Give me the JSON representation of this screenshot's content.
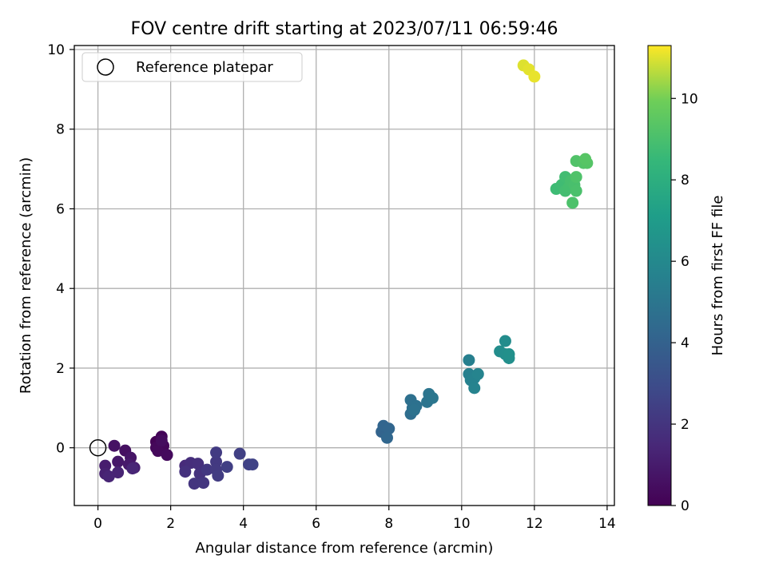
{
  "chart_data": {
    "type": "scatter",
    "title": "FOV centre drift starting at 2023/07/11 06:59:46",
    "xlabel": "Angular distance from reference (arcmin)",
    "ylabel": "Rotation from reference (arcmin)",
    "xlim": [
      -0.65,
      14.2
    ],
    "ylim": [
      -1.45,
      10.1
    ],
    "xticks": [
      0,
      2,
      4,
      6,
      8,
      10,
      12,
      14
    ],
    "yticks": [
      0,
      2,
      4,
      6,
      8,
      10
    ],
    "grid": true,
    "legend": {
      "location": "upper-left",
      "entries": [
        "Reference platepar"
      ]
    },
    "reference_point": {
      "name": "Reference platepar",
      "x": 0,
      "y": 0,
      "marker": "open-circle"
    },
    "colorbar": {
      "label": "Hours from first FF file",
      "range": [
        0,
        11.3
      ],
      "ticks": [
        0,
        2,
        4,
        6,
        8,
        10
      ],
      "colormap": "viridis"
    },
    "points": [
      {
        "x": 1.6,
        "y": 0.15,
        "h": 0.05
      },
      {
        "x": 1.7,
        "y": 0.1,
        "h": 0.1
      },
      {
        "x": 1.75,
        "y": 0.28,
        "h": 0.15
      },
      {
        "x": 1.8,
        "y": 0.05,
        "h": 0.2
      },
      {
        "x": 1.6,
        "y": 0.0,
        "h": 0.25
      },
      {
        "x": 1.65,
        "y": -0.08,
        "h": 0.3
      },
      {
        "x": 1.9,
        "y": -0.18,
        "h": 0.35
      },
      {
        "x": 1.75,
        "y": 0.18,
        "h": 0.4
      },
      {
        "x": 0.75,
        "y": -0.07,
        "h": 0.55
      },
      {
        "x": 0.45,
        "y": 0.05,
        "h": 0.65
      },
      {
        "x": 0.9,
        "y": -0.25,
        "h": 0.75
      },
      {
        "x": 0.55,
        "y": -0.35,
        "h": 0.85
      },
      {
        "x": 0.85,
        "y": -0.42,
        "h": 0.95
      },
      {
        "x": 0.2,
        "y": -0.45,
        "h": 1.05
      },
      {
        "x": 1.0,
        "y": -0.5,
        "h": 1.1
      },
      {
        "x": 0.2,
        "y": -0.65,
        "h": 1.2
      },
      {
        "x": 0.55,
        "y": -0.62,
        "h": 1.3
      },
      {
        "x": 0.3,
        "y": -0.72,
        "h": 1.35
      },
      {
        "x": 0.95,
        "y": -0.52,
        "h": 1.4
      },
      {
        "x": 2.4,
        "y": -0.45,
        "h": 1.6
      },
      {
        "x": 2.55,
        "y": -0.38,
        "h": 1.7
      },
      {
        "x": 2.75,
        "y": -0.4,
        "h": 1.8
      },
      {
        "x": 2.4,
        "y": -0.6,
        "h": 1.85
      },
      {
        "x": 2.8,
        "y": -0.65,
        "h": 1.9
      },
      {
        "x": 2.65,
        "y": -0.9,
        "h": 2.0
      },
      {
        "x": 2.9,
        "y": -0.88,
        "h": 2.05
      },
      {
        "x": 3.0,
        "y": -0.55,
        "h": 2.1
      },
      {
        "x": 3.25,
        "y": -0.35,
        "h": 2.15
      },
      {
        "x": 3.25,
        "y": -0.55,
        "h": 2.2
      },
      {
        "x": 3.25,
        "y": -0.12,
        "h": 2.25
      },
      {
        "x": 3.3,
        "y": -0.7,
        "h": 2.3
      },
      {
        "x": 3.55,
        "y": -0.48,
        "h": 2.4
      },
      {
        "x": 3.9,
        "y": -0.15,
        "h": 2.45
      },
      {
        "x": 4.15,
        "y": -0.42,
        "h": 2.5
      },
      {
        "x": 4.25,
        "y": -0.42,
        "h": 2.55
      },
      {
        "x": 7.8,
        "y": 0.4,
        "h": 4.1
      },
      {
        "x": 7.85,
        "y": 0.55,
        "h": 4.15
      },
      {
        "x": 8.0,
        "y": 0.48,
        "h": 4.2
      },
      {
        "x": 7.95,
        "y": 0.25,
        "h": 4.25
      },
      {
        "x": 8.6,
        "y": 0.85,
        "h": 4.6
      },
      {
        "x": 8.65,
        "y": 1.0,
        "h": 4.65
      },
      {
        "x": 8.6,
        "y": 1.2,
        "h": 4.7
      },
      {
        "x": 8.75,
        "y": 1.05,
        "h": 4.75
      },
      {
        "x": 8.7,
        "y": 0.95,
        "h": 4.8
      },
      {
        "x": 9.05,
        "y": 1.15,
        "h": 4.9
      },
      {
        "x": 9.1,
        "y": 1.35,
        "h": 4.95
      },
      {
        "x": 9.2,
        "y": 1.25,
        "h": 5.0
      },
      {
        "x": 10.2,
        "y": 2.2,
        "h": 5.5
      },
      {
        "x": 10.2,
        "y": 1.85,
        "h": 5.55
      },
      {
        "x": 10.25,
        "y": 1.7,
        "h": 5.6
      },
      {
        "x": 10.35,
        "y": 1.75,
        "h": 5.65
      },
      {
        "x": 10.35,
        "y": 1.5,
        "h": 5.7
      },
      {
        "x": 10.45,
        "y": 1.85,
        "h": 5.75
      },
      {
        "x": 11.2,
        "y": 2.68,
        "h": 6.2
      },
      {
        "x": 11.05,
        "y": 2.42,
        "h": 6.25
      },
      {
        "x": 11.2,
        "y": 2.35,
        "h": 6.3
      },
      {
        "x": 11.3,
        "y": 2.25,
        "h": 6.35
      },
      {
        "x": 11.3,
        "y": 2.35,
        "h": 6.4
      },
      {
        "x": 12.6,
        "y": 6.5,
        "h": 8.7
      },
      {
        "x": 12.75,
        "y": 6.6,
        "h": 8.75
      },
      {
        "x": 12.85,
        "y": 6.8,
        "h": 8.8
      },
      {
        "x": 12.85,
        "y": 6.45,
        "h": 8.85
      },
      {
        "x": 12.95,
        "y": 6.55,
        "h": 8.9
      },
      {
        "x": 13.0,
        "y": 6.7,
        "h": 8.95
      },
      {
        "x": 13.1,
        "y": 6.6,
        "h": 9.0
      },
      {
        "x": 13.15,
        "y": 6.45,
        "h": 9.05
      },
      {
        "x": 13.05,
        "y": 6.15,
        "h": 9.1
      },
      {
        "x": 13.15,
        "y": 6.8,
        "h": 9.15
      },
      {
        "x": 13.15,
        "y": 7.2,
        "h": 9.2
      },
      {
        "x": 13.35,
        "y": 7.15,
        "h": 9.25
      },
      {
        "x": 13.45,
        "y": 7.15,
        "h": 9.3
      },
      {
        "x": 13.4,
        "y": 7.25,
        "h": 9.35
      },
      {
        "x": 11.7,
        "y": 9.6,
        "h": 11.0
      },
      {
        "x": 11.85,
        "y": 9.5,
        "h": 11.05
      },
      {
        "x": 12.0,
        "y": 9.32,
        "h": 11.1
      }
    ]
  }
}
